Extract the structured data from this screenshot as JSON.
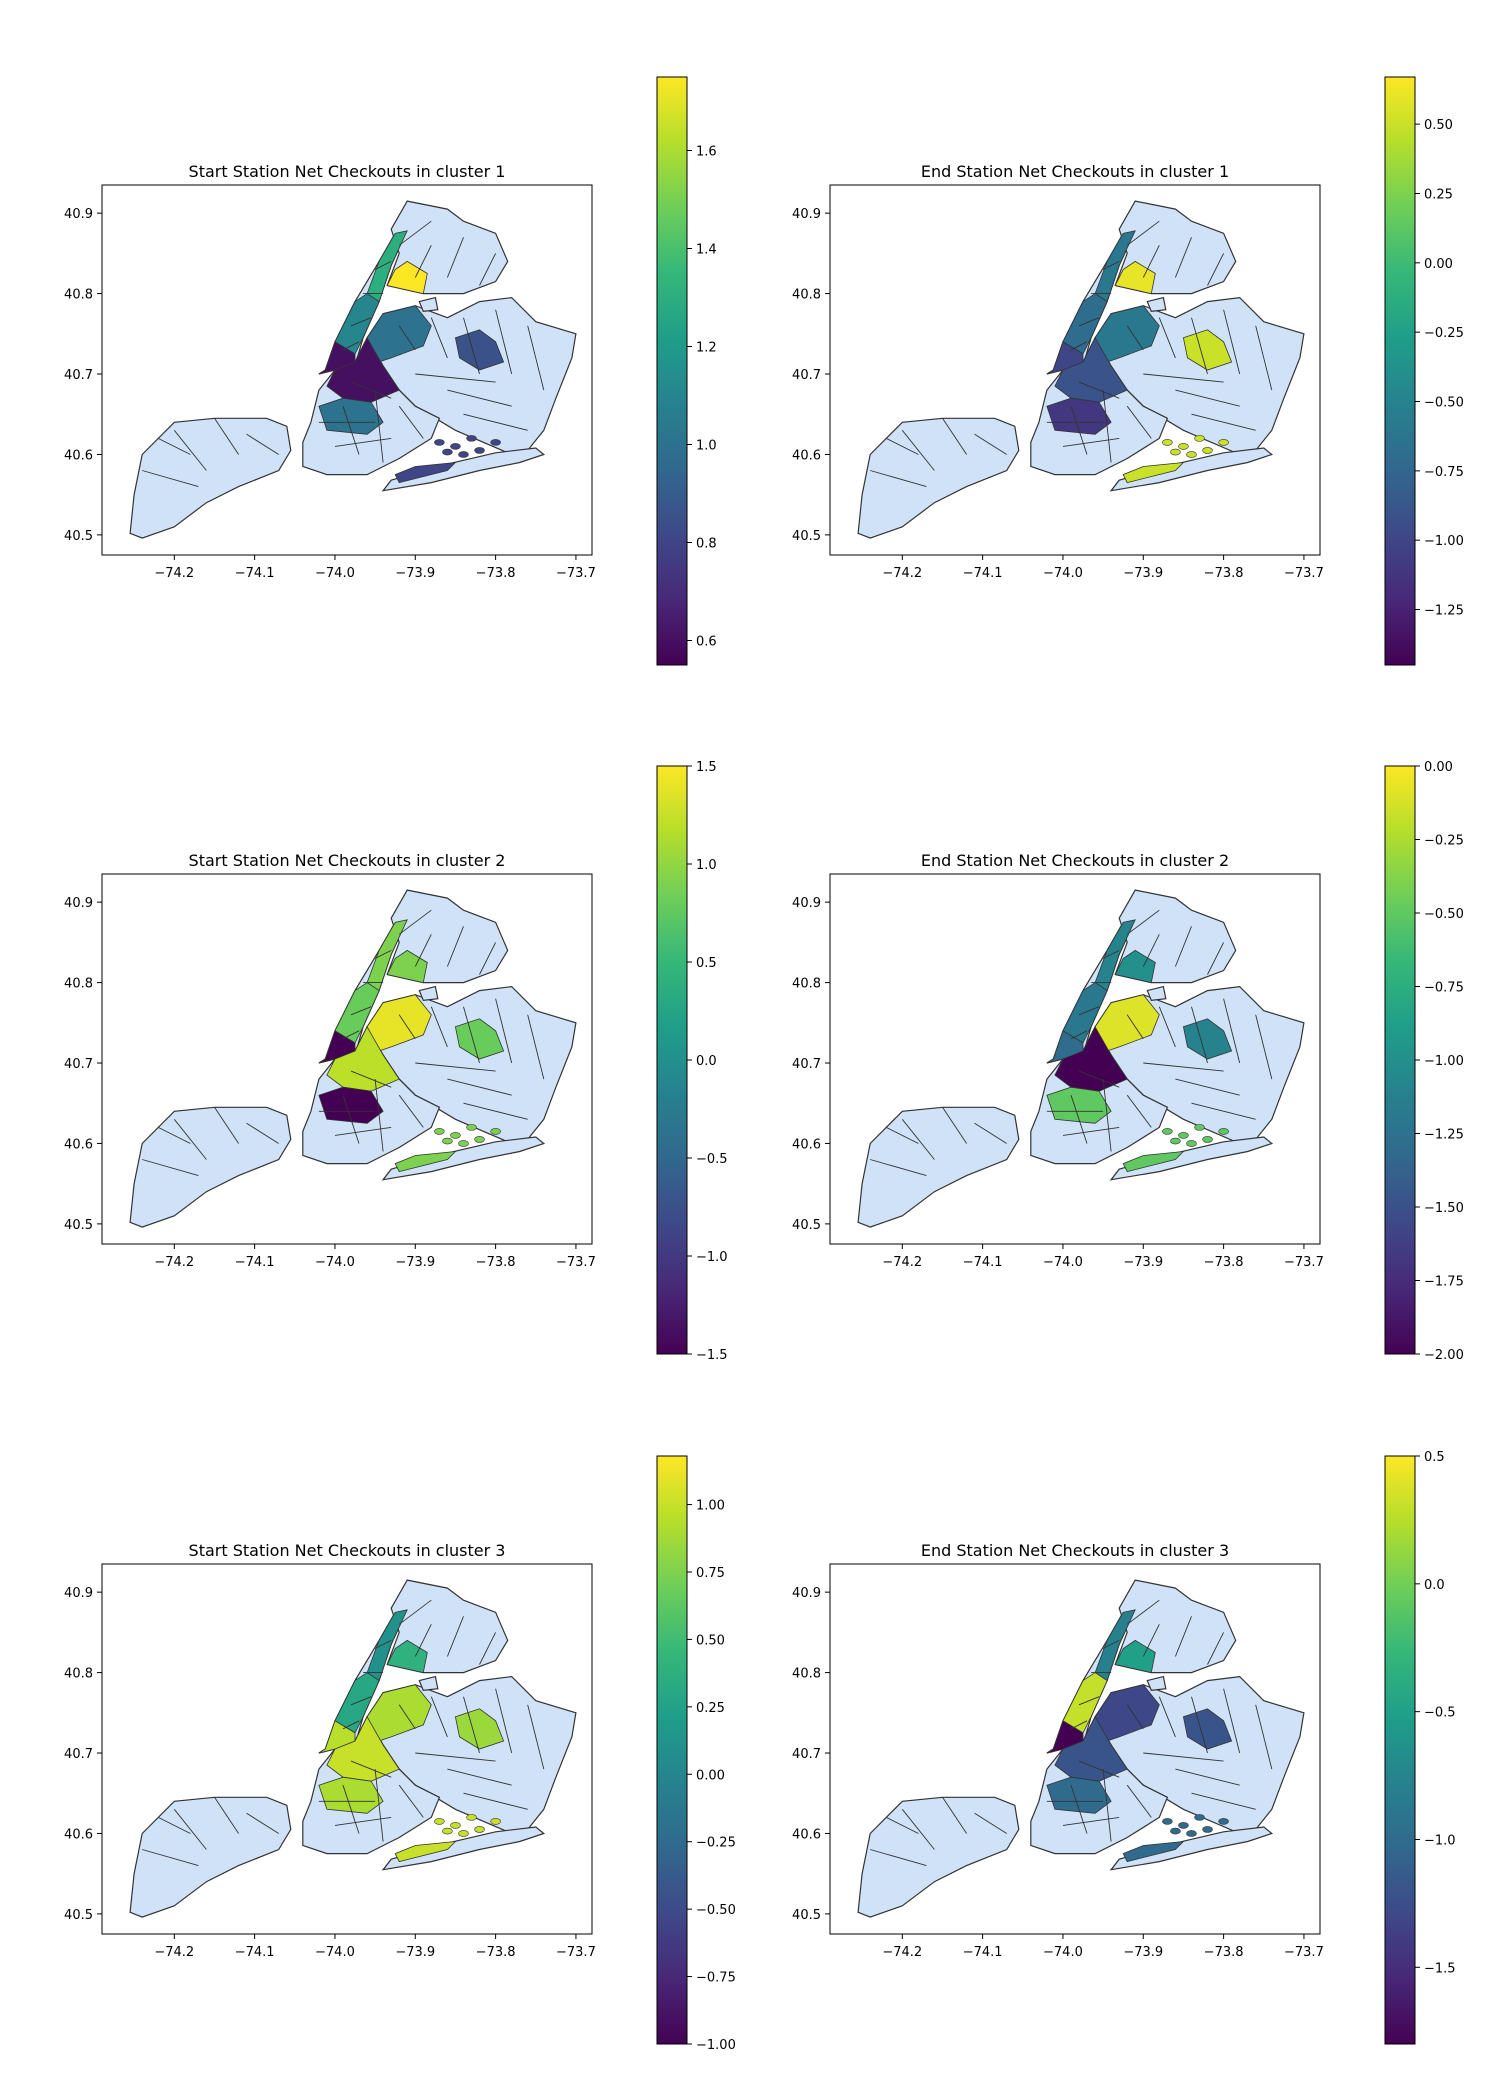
{
  "colormap": [
    "#440154",
    "#482878",
    "#3e4989",
    "#31688e",
    "#26828e",
    "#1f9e89",
    "#35b779",
    "#6ece58",
    "#b5de2b",
    "#fde725"
  ],
  "base_fill": "#cfe2f7",
  "boundary_color": "#333333",
  "x_ticks": [
    "−74.2",
    "−74.1",
    "−74.0",
    "−73.9",
    "−73.8",
    "−73.7"
  ],
  "y_ticks": [
    "40.5",
    "40.6",
    "40.7",
    "40.8",
    "40.9"
  ],
  "panels": [
    {
      "title": "Start Station Net Checkouts in cluster 1",
      "colorbar": {
        "min": 0.55,
        "max": 1.75,
        "ticks": [
          "0.6",
          "0.8",
          "1.0",
          "1.2",
          "1.4",
          "1.6"
        ],
        "tick_values": [
          0.6,
          0.8,
          1.0,
          1.2,
          1.4,
          1.6
        ]
      },
      "regions": {
        "manhattan_north": 1.3,
        "manhattan_mid": 1.1,
        "manhattan_south": 0.6,
        "bronx_south": 1.75,
        "queens_west": 1.0,
        "queens_east": 0.85,
        "brooklyn_north": 0.6,
        "brooklyn_south": 1.0,
        "rockaway": 0.8
      }
    },
    {
      "title": "End Station Net Checkouts in cluster 1",
      "colorbar": {
        "min": -1.45,
        "max": 0.67,
        "ticks": [
          "0.50",
          "0.25",
          "0.00",
          "−0.25",
          "−0.50",
          "−0.75",
          "−1.00",
          "−1.25"
        ],
        "tick_values": [
          0.5,
          0.25,
          0.0,
          -0.25,
          -0.5,
          -0.75,
          -1.0,
          -1.25
        ]
      },
      "regions": {
        "manhattan_north": -0.6,
        "manhattan_mid": -0.7,
        "manhattan_south": -1.0,
        "bronx_south": 0.6,
        "queens_west": -0.6,
        "queens_east": 0.5,
        "brooklyn_north": -0.9,
        "brooklyn_south": -1.1,
        "rockaway": 0.5
      }
    },
    {
      "title": "Start Station Net Checkouts in cluster 2",
      "colorbar": {
        "min": -1.5,
        "max": 1.5,
        "ticks": [
          "1.5",
          "1.0",
          "0.5",
          "0.0",
          "−0.5",
          "−1.0",
          "−1.5"
        ],
        "tick_values": [
          1.5,
          1.0,
          0.5,
          0.0,
          -0.5,
          -1.0,
          -1.5
        ]
      },
      "regions": {
        "manhattan_north": 0.9,
        "manhattan_mid": 0.8,
        "manhattan_south": -1.5,
        "bronx_south": 0.9,
        "queens_west": 1.4,
        "queens_east": 0.8,
        "brooklyn_north": 1.2,
        "brooklyn_south": -1.5,
        "rockaway": 0.9
      }
    },
    {
      "title": "End Station Net Checkouts in cluster 2",
      "colorbar": {
        "min": -2.0,
        "max": 0.0,
        "ticks": [
          "0.00",
          "−0.25",
          "−0.50",
          "−0.75",
          "−1.00",
          "−1.25",
          "−1.50",
          "−1.75",
          "−2.00"
        ],
        "tick_values": [
          0.0,
          -0.25,
          -0.5,
          -0.75,
          -1.0,
          -1.25,
          -1.5,
          -1.75,
          -2.0
        ]
      },
      "regions": {
        "manhattan_north": -1.1,
        "manhattan_mid": -1.2,
        "manhattan_south": -1.3,
        "bronx_south": -1.0,
        "queens_west": -0.1,
        "queens_east": -1.1,
        "brooklyn_north": -2.0,
        "brooklyn_south": -0.5,
        "rockaway": -0.5
      }
    },
    {
      "title": "Start Station Net Checkouts in cluster 3",
      "colorbar": {
        "min": -1.0,
        "max": 1.18,
        "ticks": [
          "1.00",
          "0.75",
          "0.50",
          "0.25",
          "0.00",
          "−0.25",
          "−0.50",
          "−0.75",
          "−1.00"
        ],
        "tick_values": [
          1.0,
          0.75,
          0.5,
          0.25,
          0.0,
          -0.25,
          -0.5,
          -0.75,
          -1.0
        ]
      },
      "regions": {
        "manhattan_north": 0.1,
        "manhattan_mid": 0.3,
        "manhattan_south": 0.95,
        "bronx_south": 0.4,
        "queens_west": 0.9,
        "queens_east": 0.85,
        "brooklyn_north": 1.0,
        "brooklyn_south": 0.9,
        "rockaway": 1.0
      }
    },
    {
      "title": "End Station Net Checkouts in cluster 3",
      "colorbar": {
        "min": -1.8,
        "max": 0.5,
        "ticks": [
          "0.5",
          "0.0",
          "−0.5",
          "−1.0",
          "−1.5"
        ],
        "tick_values": [
          0.5,
          0.0,
          -0.5,
          -1.0,
          -1.5
        ]
      },
      "regions": {
        "manhattan_north": -0.8,
        "manhattan_mid": 0.3,
        "manhattan_south": -1.8,
        "bronx_south": -0.5,
        "queens_west": -1.3,
        "queens_east": -1.2,
        "brooklyn_north": -1.2,
        "brooklyn_south": -1.0,
        "rockaway": -1.0
      }
    }
  ]
}
